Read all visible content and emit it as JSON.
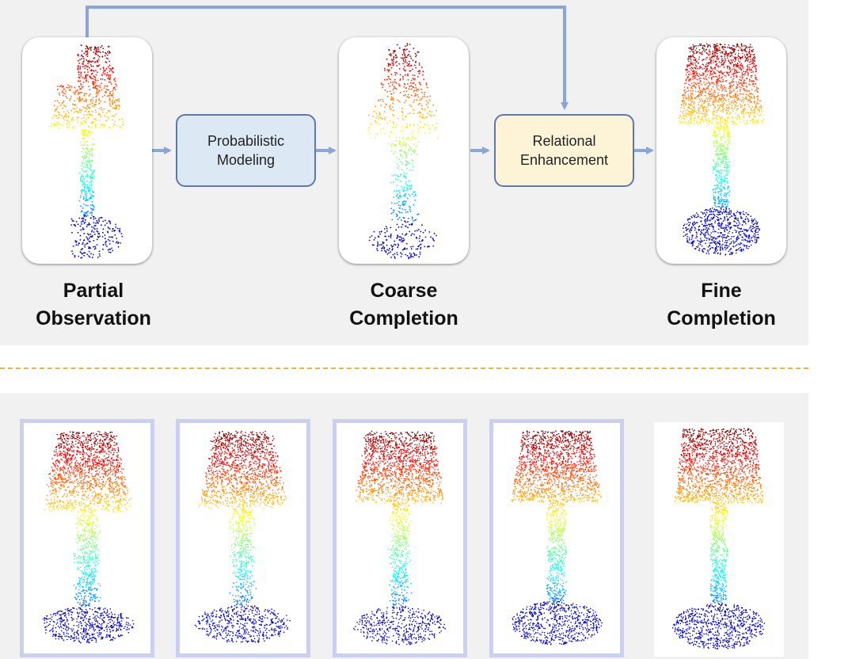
{
  "diagram": {
    "stages": [
      {
        "id": "partial",
        "caption": "Partial\nObservation"
      },
      {
        "id": "coarse",
        "caption": "Coarse\nCompletion"
      },
      {
        "id": "fine",
        "caption": "Fine\nCompletion"
      }
    ],
    "modules": [
      {
        "id": "probabilistic",
        "label": "Probabilistic\nModeling"
      },
      {
        "id": "relational",
        "label": "Relational\nEnhancement"
      }
    ]
  },
  "colors": {
    "panel_bg": "#f1f1f1",
    "arrow": "#8aa6d6",
    "box_border": "#5c78ad",
    "probabilistic_fill": "#dde8f5",
    "relational_fill": "#fdf4d8",
    "divider": "#efb43a",
    "thumb_border": "#c9d0f2"
  }
}
